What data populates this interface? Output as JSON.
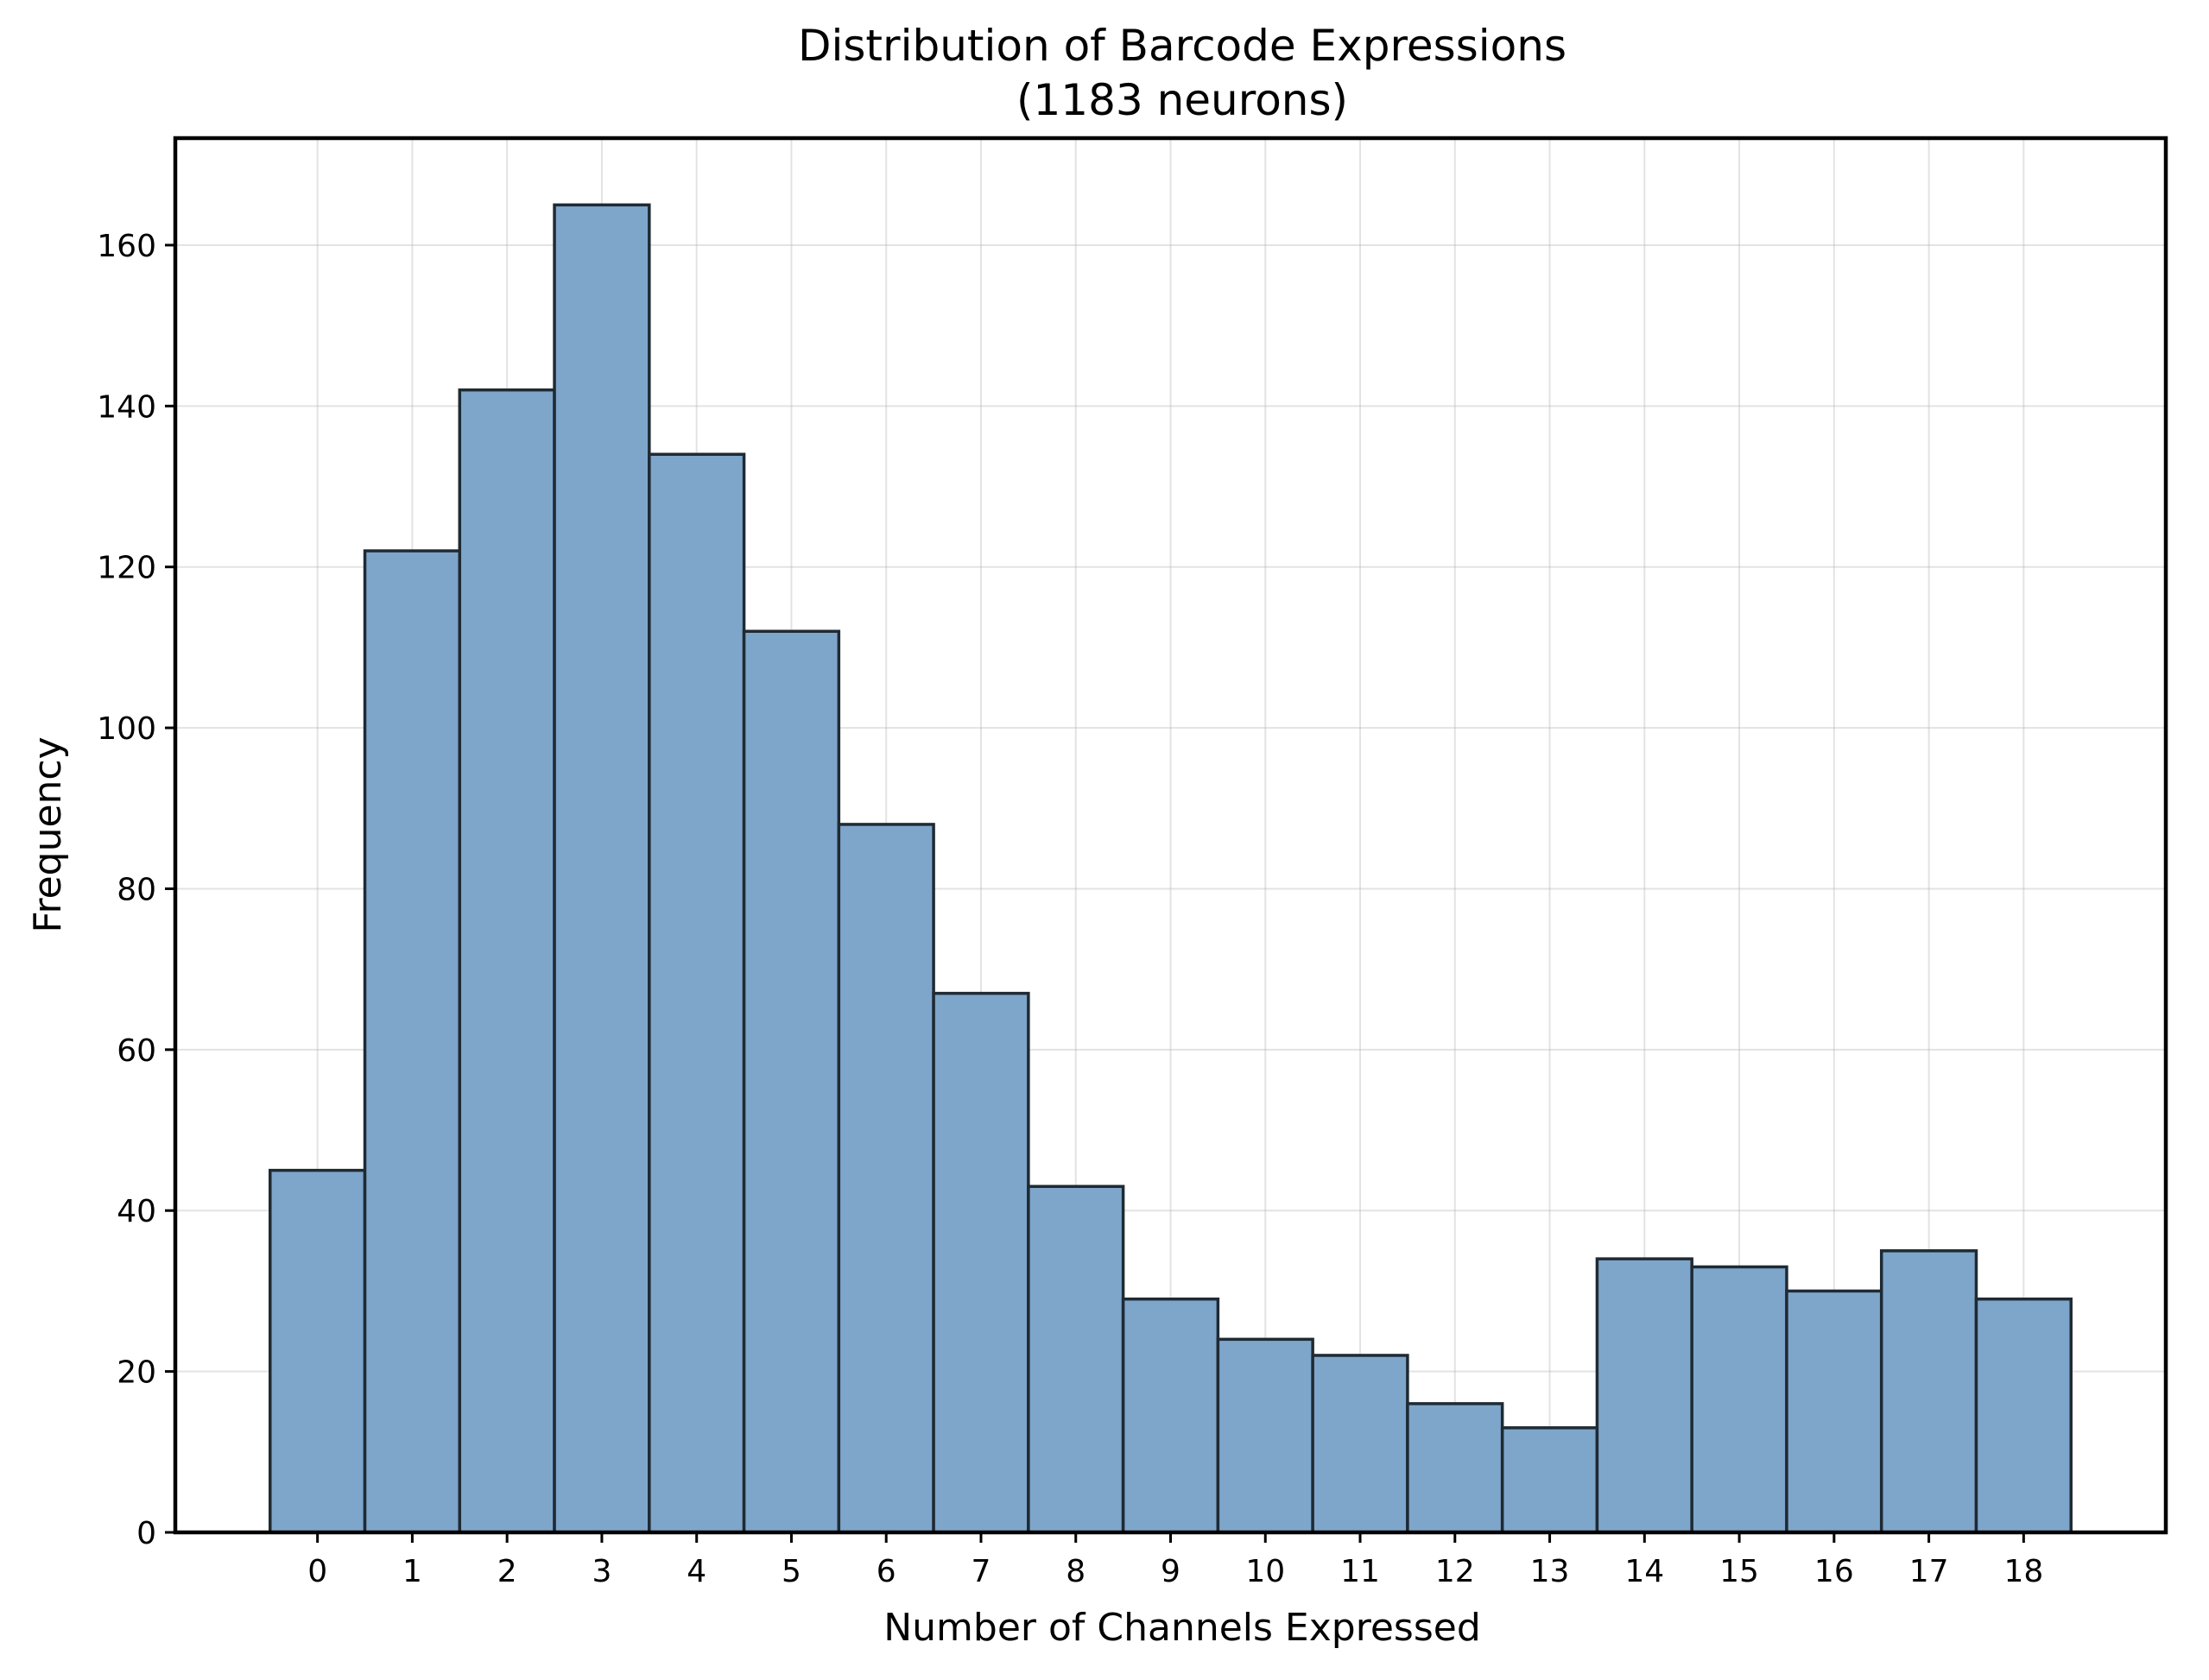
{
  "chart_data": {
    "type": "bar",
    "title": "Distribution of Barcode Expressions",
    "subtitle": "(1183 neurons)",
    "xlabel": "Number of Channels Expressed",
    "ylabel": "Frequency",
    "categories": [
      "0",
      "1",
      "2",
      "3",
      "4",
      "5",
      "6",
      "7",
      "8",
      "9",
      "10",
      "11",
      "12",
      "13",
      "14",
      "15",
      "16",
      "17",
      "18"
    ],
    "values": [
      45,
      122,
      142,
      165,
      134,
      112,
      88,
      67,
      43,
      29,
      24,
      22,
      16,
      13,
      34,
      33,
      30,
      35,
      29
    ],
    "xlim": [
      -1.5,
      19.5
    ],
    "ylim": [
      0,
      173.3
    ],
    "yticks": [
      0,
      20,
      40,
      60,
      80,
      100,
      120,
      140,
      160
    ],
    "grid": true,
    "legend": "none",
    "colors": {
      "bar_fill": "#7ea6cb",
      "bar_edge": "#1f2a33",
      "grid": "#b0b0b0",
      "axis": "#000000"
    }
  }
}
